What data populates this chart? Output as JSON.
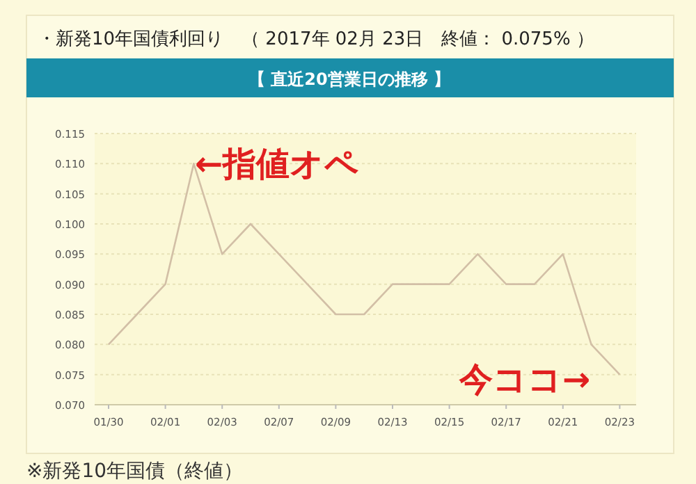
{
  "chart_data": {
    "type": "line",
    "title": "・新発10年国債利回り　（ 2017年 02月 23日　終値： 0.075% ）",
    "subtitle": "【 直近20営業日の推移 】",
    "categories": [
      "01/30",
      null,
      "02/01",
      null,
      "02/03",
      null,
      "02/07",
      null,
      "02/09",
      null,
      "02/13",
      null,
      "02/15",
      null,
      "02/17",
      null,
      "02/21",
      null,
      "02/23"
    ],
    "values": [
      0.08,
      0.085,
      0.09,
      0.11,
      0.095,
      0.1,
      0.095,
      0.09,
      0.085,
      0.085,
      0.09,
      0.09,
      0.09,
      0.095,
      0.09,
      0.09,
      0.095,
      0.08,
      0.075
    ],
    "color": "#d2bfa6",
    "ylim": [
      0.07,
      0.115
    ],
    "yticks": [
      {
        "value": 0.07,
        "label": "0.070"
      },
      {
        "value": 0.075,
        "label": "0.075"
      },
      {
        "value": 0.08,
        "label": "0.080"
      },
      {
        "value": 0.085,
        "label": "0.085"
      },
      {
        "value": 0.09,
        "label": "0.090"
      },
      {
        "value": 0.095,
        "label": "0.095"
      },
      {
        "value": 0.1,
        "label": "0.100"
      },
      {
        "value": 0.105,
        "label": "0.105"
      },
      {
        "value": 0.11,
        "label": "0.110"
      },
      {
        "value": 0.115,
        "label": "0.115"
      }
    ],
    "grid": "y",
    "annotations": [
      "←指値オペ",
      "今ココ→",
      "※新発10年国債（終値）"
    ]
  }
}
